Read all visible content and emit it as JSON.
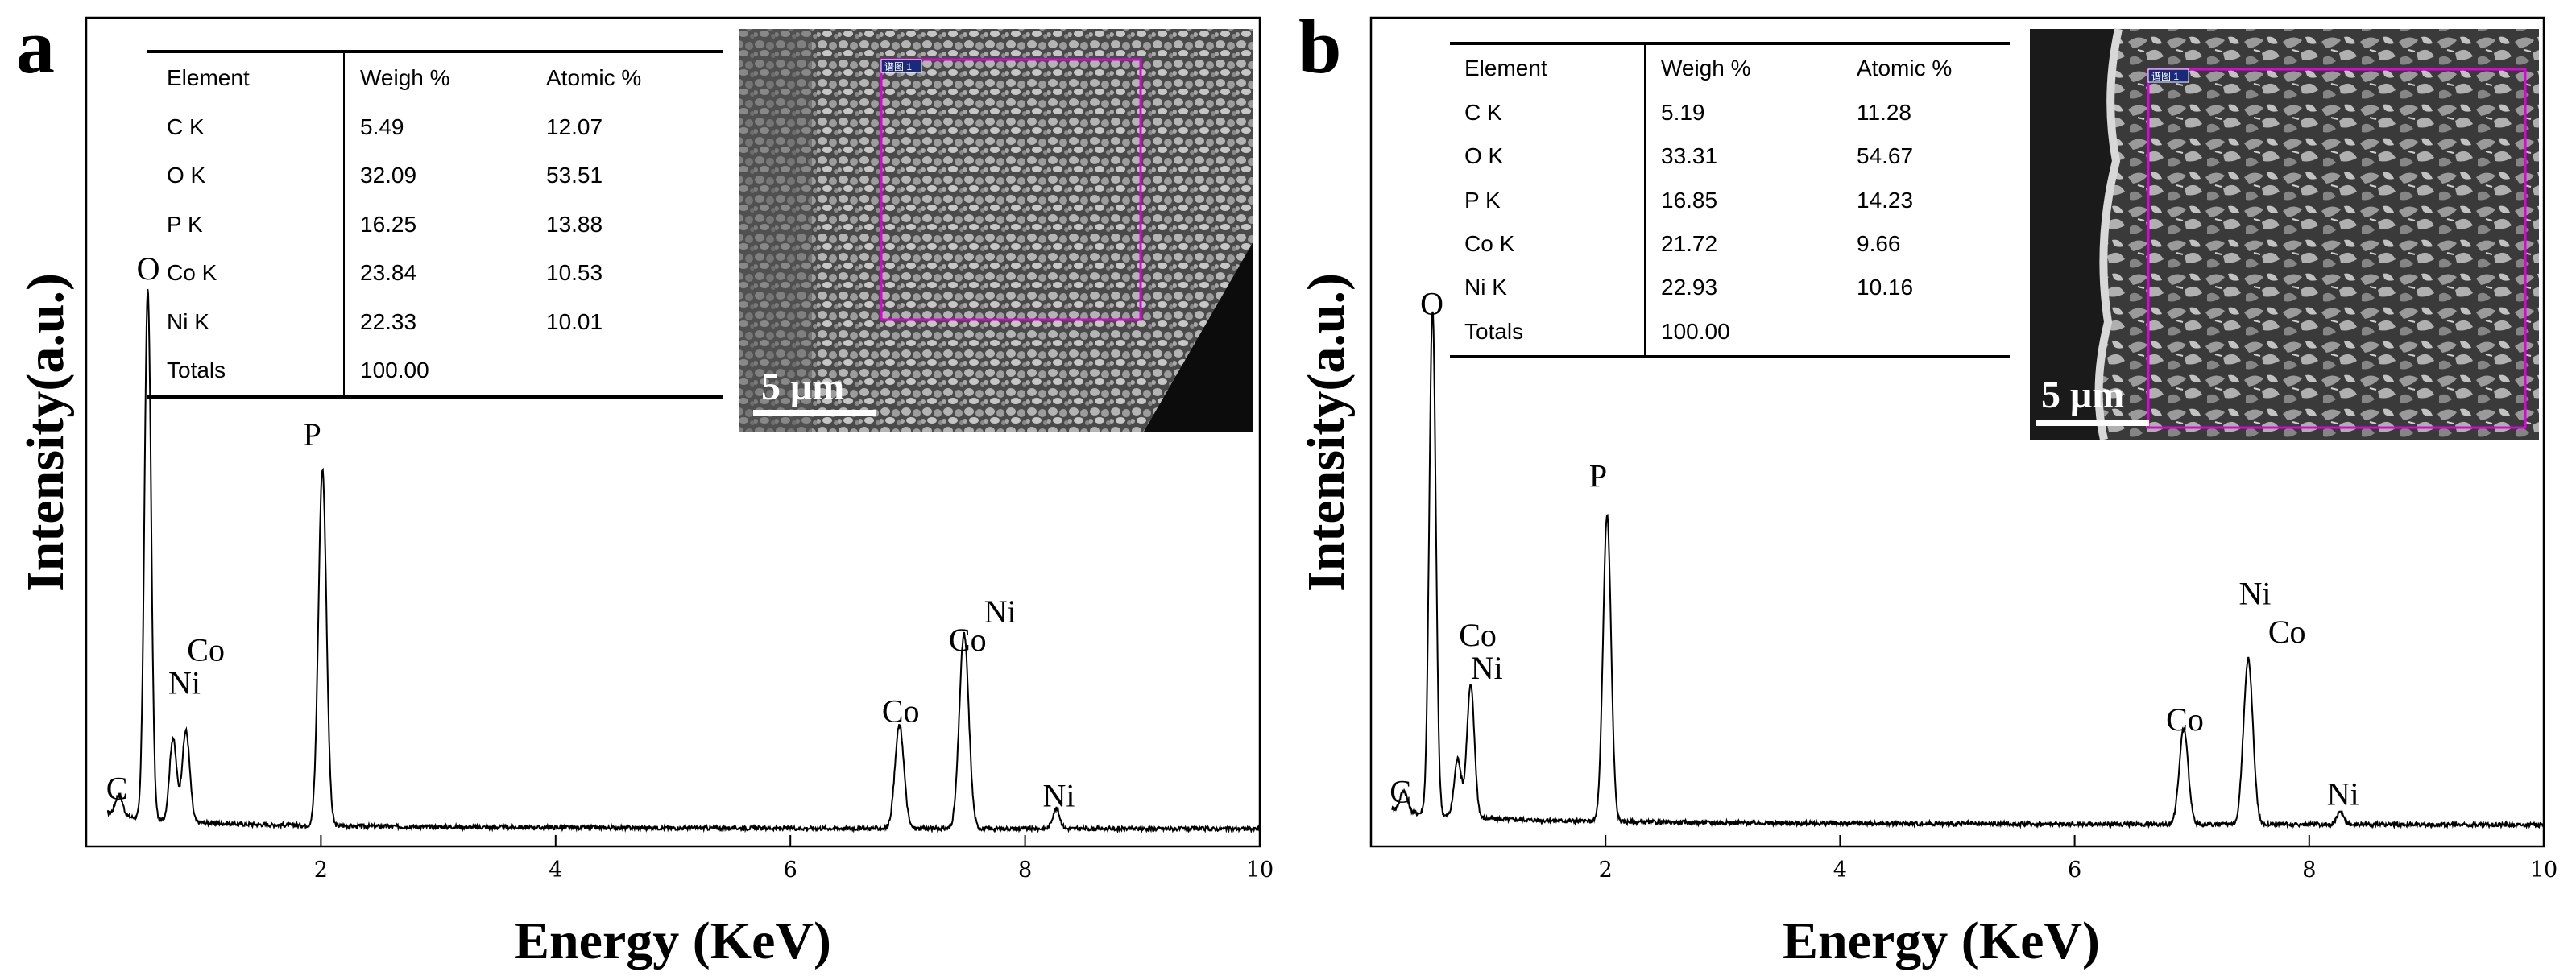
{
  "figure": "EDS spectra",
  "chart_data": [
    {
      "type": "line",
      "panel_label": "a",
      "xlabel": "Energy (KeV)",
      "ylabel": "Intensity(a.u.)",
      "xlim": [
        0,
        10
      ],
      "ylim": [
        0,
        100
      ],
      "xticks": [
        2,
        4,
        6,
        8,
        10
      ],
      "baseline": 2.0,
      "peaks": [
        {
          "x": 0.28,
          "h": 2.5,
          "w": 0.03
        },
        {
          "x": 0.525,
          "h": 64,
          "w": 0.028
        },
        {
          "x": 0.74,
          "h": 10,
          "w": 0.03
        },
        {
          "x": 0.85,
          "h": 11,
          "w": 0.032
        },
        {
          "x": 2.013,
          "h": 43,
          "w": 0.034
        },
        {
          "x": 6.93,
          "h": 12.5,
          "w": 0.038
        },
        {
          "x": 7.48,
          "h": 23.5,
          "w": 0.04
        },
        {
          "x": 8.265,
          "h": 2.4,
          "w": 0.03
        }
      ],
      "peak_labels": [
        {
          "text": "C",
          "x": 0.17,
          "y": 5.7
        },
        {
          "text": "O",
          "x": 0.43,
          "y": 68.4
        },
        {
          "text": "Ni",
          "x": 0.7,
          "y": 18.4
        },
        {
          "text": "Co",
          "x": 0.86,
          "y": 22.4
        },
        {
          "text": "P",
          "x": 1.85,
          "y": 48.4
        },
        {
          "text": "Co",
          "x": 6.78,
          "y": 15.0
        },
        {
          "text": "Co",
          "x": 7.35,
          "y": 23.6
        },
        {
          "text": "Ni",
          "x": 7.65,
          "y": 27.0
        },
        {
          "text": "Ni",
          "x": 8.15,
          "y": 4.8
        }
      ],
      "table": {
        "headers": [
          "Element",
          "Weigh %",
          "Atomic %"
        ],
        "rows": [
          [
            "C K",
            "5.49",
            "12.07"
          ],
          [
            "O K",
            "32.09",
            "53.51"
          ],
          [
            "P K",
            "16.25",
            "13.88"
          ],
          [
            "Co K",
            "23.84",
            "10.53"
          ],
          [
            "Ni K",
            "22.33",
            "10.01"
          ],
          [
            "Totals",
            "100.00",
            ""
          ]
        ]
      },
      "inset": {
        "scale_bar": "5 μm",
        "tag": "谱图 1"
      }
    },
    {
      "type": "line",
      "panel_label": "b",
      "xlabel": "Energy (KeV)",
      "ylabel": "Intensity(a.u.)",
      "xlim": [
        0,
        10
      ],
      "ylim": [
        0,
        100
      ],
      "xticks": [
        2,
        4,
        6,
        8,
        10
      ],
      "baseline": 2.5,
      "peaks": [
        {
          "x": 0.28,
          "h": 2.5,
          "w": 0.03
        },
        {
          "x": 0.525,
          "h": 61,
          "w": 0.028
        },
        {
          "x": 0.74,
          "h": 7,
          "w": 0.03
        },
        {
          "x": 0.85,
          "h": 16,
          "w": 0.032
        },
        {
          "x": 2.013,
          "h": 37,
          "w": 0.034
        },
        {
          "x": 6.93,
          "h": 11.5,
          "w": 0.038
        },
        {
          "x": 7.48,
          "h": 20,
          "w": 0.04
        },
        {
          "x": 8.265,
          "h": 1.5,
          "w": 0.03
        }
      ],
      "peak_labels": [
        {
          "text": "C",
          "x": 0.16,
          "y": 5.3
        },
        {
          "text": "O",
          "x": 0.42,
          "y": 64.2
        },
        {
          "text": "Co",
          "x": 0.75,
          "y": 24.2
        },
        {
          "text": "Ni",
          "x": 0.85,
          "y": 20.2
        },
        {
          "text": "P",
          "x": 1.86,
          "y": 43.4
        },
        {
          "text": "Co",
          "x": 6.78,
          "y": 14.0
        },
        {
          "text": "Ni",
          "x": 7.4,
          "y": 29.2
        },
        {
          "text": "Co",
          "x": 7.65,
          "y": 24.6
        },
        {
          "text": "Ni",
          "x": 8.15,
          "y": 5.0
        }
      ],
      "table": {
        "headers": [
          "Element",
          "Weigh %",
          "Atomic %"
        ],
        "rows": [
          [
            "C K",
            "5.19",
            "11.28"
          ],
          [
            "O K",
            "33.31",
            "54.67"
          ],
          [
            "P K",
            "16.85",
            "14.23"
          ],
          [
            "Co K",
            "21.72",
            "9.66"
          ],
          [
            "Ni K",
            "22.93",
            "10.16"
          ],
          [
            "Totals",
            "100.00",
            ""
          ]
        ]
      },
      "inset": {
        "scale_bar": "5 μm",
        "tag": "谱图 1"
      }
    }
  ]
}
